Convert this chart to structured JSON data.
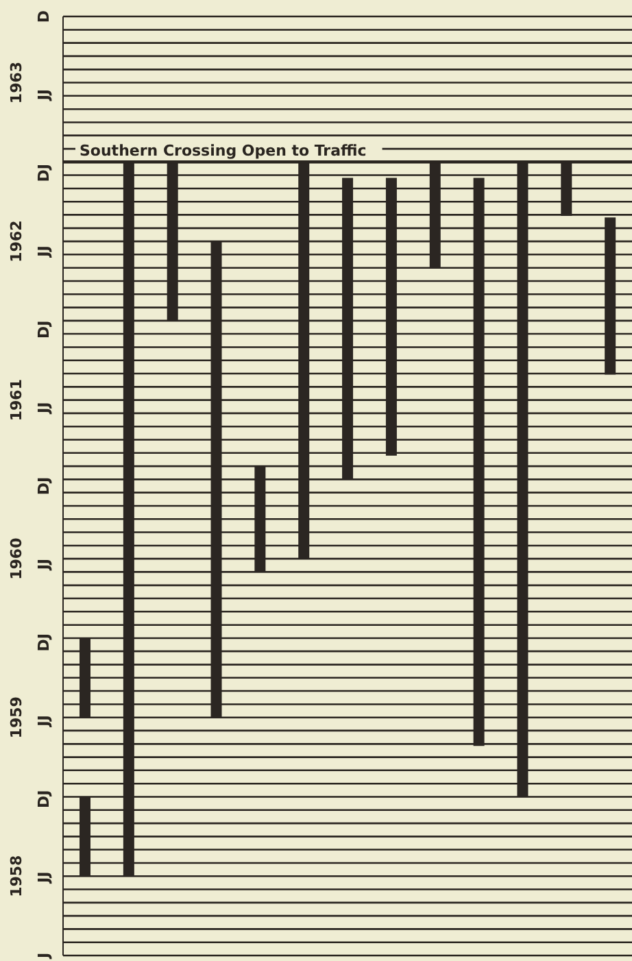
{
  "chart_data": {
    "type": "bar",
    "categories": [
      null,
      null,
      null,
      null,
      null,
      null,
      null,
      null,
      null,
      null,
      null,
      null,
      null
    ],
    "series": [
      {
        "color": "#2b2622",
        "base": [
          1958.5,
          1958.5,
          1962.0,
          1959.5,
          1960.42,
          1960.5,
          1961.0,
          1961.15,
          1962.33,
          1959.32,
          1959.0,
          1962.66,
          1961.66
        ],
        "values": [
          0.5,
          4.5,
          1.0,
          3.0,
          0.66,
          2.5,
          1.9,
          1.75,
          0.67,
          3.58,
          4.0,
          0.34,
          0.99
        ]
      },
      {
        "color": "#2b2622",
        "base": [
          1959.5,
          null,
          null,
          null,
          null,
          null,
          null,
          null,
          null,
          null,
          null,
          null,
          null
        ],
        "values": [
          0.5,
          null,
          null,
          null,
          null,
          null,
          null,
          null,
          null,
          null,
          null,
          null,
          null
        ]
      }
    ],
    "ylim": [
      1958,
      1963.917
    ],
    "yticks": [
      {
        "value": 1958,
        "label": null
      },
      {
        "value": 1958.083,
        "label": null
      },
      {
        "value": 1958.167,
        "label": null
      },
      {
        "value": 1958.25,
        "label": null
      },
      {
        "value": 1958.333,
        "label": null
      },
      {
        "value": 1958.417,
        "label": null
      },
      {
        "value": 1958.5,
        "label": "1958"
      },
      {
        "value": 1958.583,
        "label": null
      },
      {
        "value": 1958.667,
        "label": null
      },
      {
        "value": 1958.75,
        "label": null
      },
      {
        "value": 1958.833,
        "label": null
      },
      {
        "value": 1958.917,
        "label": null
      },
      {
        "value": 1959,
        "label": null
      },
      {
        "value": 1959.083,
        "label": null
      },
      {
        "value": 1959.167,
        "label": null
      },
      {
        "value": 1959.25,
        "label": null
      },
      {
        "value": 1959.333,
        "label": null
      },
      {
        "value": 1959.417,
        "label": null
      },
      {
        "value": 1959.5,
        "label": "1959"
      },
      {
        "value": 1959.583,
        "label": null
      },
      {
        "value": 1959.667,
        "label": null
      },
      {
        "value": 1959.75,
        "label": null
      },
      {
        "value": 1959.833,
        "label": null
      },
      {
        "value": 1959.917,
        "label": null
      },
      {
        "value": 1960,
        "label": null
      },
      {
        "value": 1960.083,
        "label": null
      },
      {
        "value": 1960.167,
        "label": null
      },
      {
        "value": 1960.25,
        "label": null
      },
      {
        "value": 1960.333,
        "label": null
      },
      {
        "value": 1960.417,
        "label": null
      },
      {
        "value": 1960.5,
        "label": "1960"
      },
      {
        "value": 1960.583,
        "label": null
      },
      {
        "value": 1960.667,
        "label": null
      },
      {
        "value": 1960.75,
        "label": null
      },
      {
        "value": 1960.833,
        "label": null
      },
      {
        "value": 1960.917,
        "label": null
      },
      {
        "value": 1961,
        "label": null
      },
      {
        "value": 1961.083,
        "label": null
      },
      {
        "value": 1961.167,
        "label": null
      },
      {
        "value": 1961.25,
        "label": null
      },
      {
        "value": 1961.333,
        "label": null
      },
      {
        "value": 1961.417,
        "label": null
      },
      {
        "value": 1961.5,
        "label": "1961"
      },
      {
        "value": 1961.583,
        "label": null
      },
      {
        "value": 1961.667,
        "label": null
      },
      {
        "value": 1961.75,
        "label": null
      },
      {
        "value": 1961.833,
        "label": null
      },
      {
        "value": 1961.917,
        "label": null
      },
      {
        "value": 1962,
        "label": null
      },
      {
        "value": 1962.083,
        "label": null
      },
      {
        "value": 1962.167,
        "label": null
      },
      {
        "value": 1962.25,
        "label": null
      },
      {
        "value": 1962.333,
        "label": null
      },
      {
        "value": 1962.417,
        "label": null
      },
      {
        "value": 1962.5,
        "label": "1962"
      },
      {
        "value": 1962.583,
        "label": null
      },
      {
        "value": 1962.667,
        "label": null
      },
      {
        "value": 1962.75,
        "label": null
      },
      {
        "value": 1962.833,
        "label": null
      },
      {
        "value": 1962.917,
        "label": null
      },
      {
        "value": 1963,
        "label": null
      },
      {
        "value": 1963.083,
        "label": null
      },
      {
        "value": 1963.167,
        "label": null
      },
      {
        "value": 1963.25,
        "label": null
      },
      {
        "value": 1963.333,
        "label": null
      },
      {
        "value": 1963.417,
        "label": null
      },
      {
        "value": 1963.5,
        "label": "1963"
      },
      {
        "value": 1963.583,
        "label": null
      },
      {
        "value": 1963.667,
        "label": null
      },
      {
        "value": 1963.75,
        "label": null
      },
      {
        "value": 1963.833,
        "label": null
      },
      {
        "value": 1963.917,
        "label": null
      }
    ],
    "annotations": [
      "J",
      "JJ",
      "DJ",
      "JJ",
      "DJ",
      "JJ",
      "DJ",
      "JJ",
      "DJ",
      "JJ",
      "DJ",
      "JJ",
      "D"
    ],
    "ref_lines": [
      {
        "axis": "y",
        "value": 1963.0,
        "label": "Southern Crossing Open to Traffic"
      }
    ],
    "grid": "y",
    "tick_labels": "y"
  }
}
